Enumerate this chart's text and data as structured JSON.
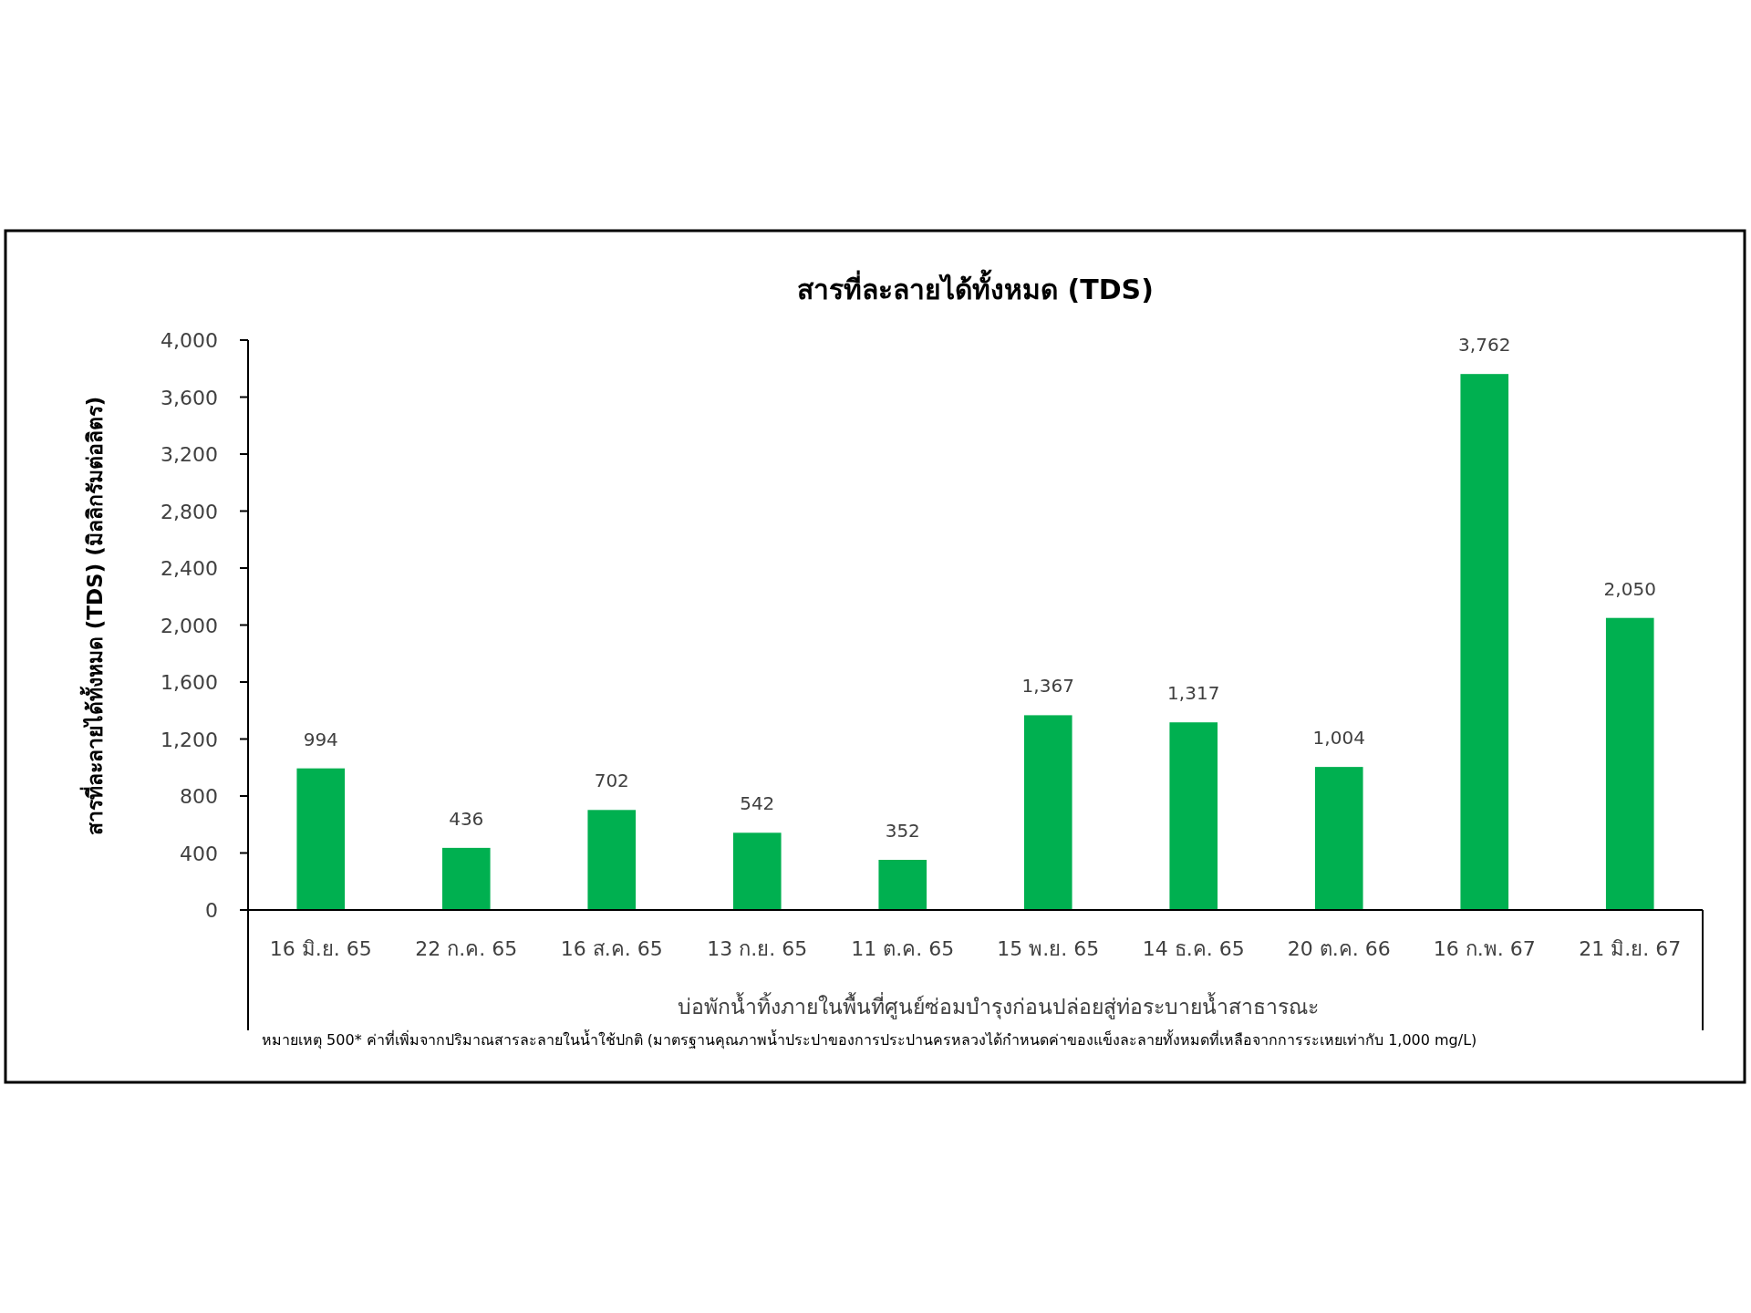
{
  "chart_data": {
    "type": "bar",
    "title": "สารที่ละลายได้ทั้งหมด (TDS)",
    "xlabel": "บ่อพักน้ำทิ้งภายในพื้นที่ศูนย์ซ่อมบำรุงก่อนปล่อยสู่ท่อระบายน้ำสาธารณะ",
    "ylabel": "สารที่ละลายได้ทั้งหมด (TDS) (มิลลิกรัมต่อลิตร)",
    "categories": [
      "16 มิ.ย. 65",
      "22 ก.ค. 65",
      "16 ส.ค. 65",
      "13 ก.ย. 65",
      "11 ต.ค. 65",
      "15 พ.ย. 65",
      "14 ธ.ค. 65",
      "20 ต.ค. 66",
      "16 ก.พ. 67",
      "21 มิ.ย. 67"
    ],
    "values": [
      994,
      436,
      702,
      542,
      352,
      1367,
      1317,
      1004,
      3762,
      2050
    ],
    "value_labels": [
      "994",
      "436",
      "702",
      "542",
      "352",
      "1,367",
      "1,317",
      "1,004",
      "3,762",
      "2,050"
    ],
    "color": "#00b050",
    "ylim": [
      0,
      4000
    ],
    "yticks": [
      0,
      400,
      800,
      {
        "value": 1200,
        "label": "1,200"
      },
      {
        "value": 1600,
        "label": "1,600"
      },
      {
        "value": 2000,
        "label": "2,000"
      },
      {
        "value": 2400,
        "label": "2,400"
      },
      {
        "value": 2800,
        "label": "2,800"
      },
      {
        "value": 3200,
        "label": "3,200"
      },
      {
        "value": 3600,
        "label": "3,600"
      },
      {
        "value": 4000,
        "label": "4,000"
      }
    ],
    "grid": false,
    "annotations": [
      "หมายเหตุ 500* ค่าที่เพิ่มจากปริมาณสารละลายในน้ำใช้ปกติ (มาตรฐานคุณภาพน้ำประปาของการประปานครหลวงได้กำหนดค่าของแข็งละลายทั้งหมดที่เหลือจากการระเหยเท่ากับ 1,000 mg/L)"
    ]
  }
}
